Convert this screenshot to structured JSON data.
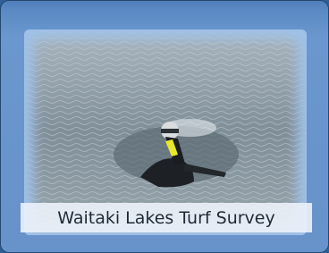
{
  "caption": "Waitaki Lakes Turf Survey"
}
